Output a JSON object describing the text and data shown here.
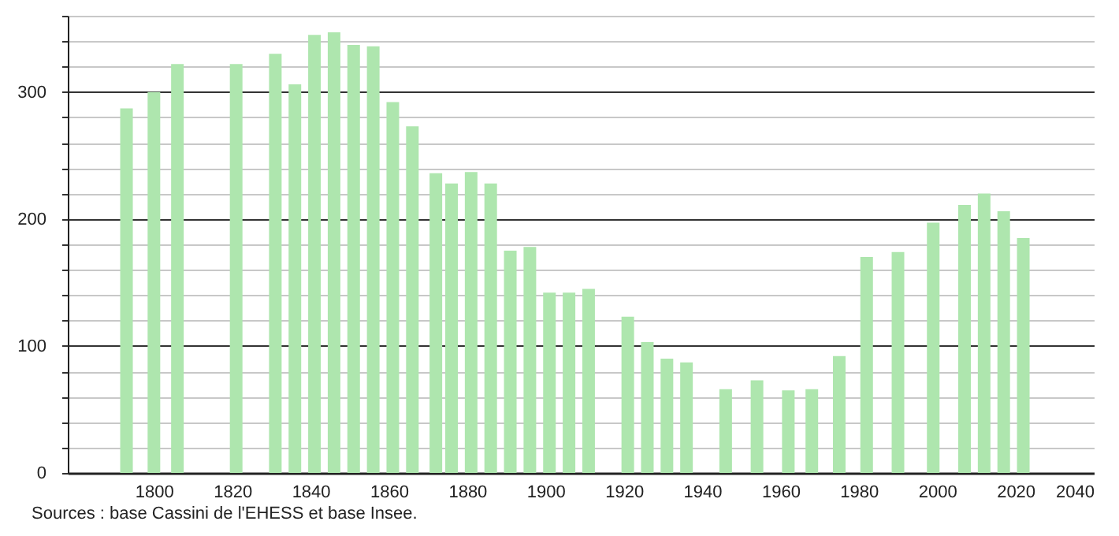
{
  "chart_data": {
    "type": "bar",
    "annotations": [
      "Sources : base Cassini de l'EHESS et base Insee."
    ],
    "x": [
      1793,
      1800,
      1806,
      1821,
      1831,
      1836,
      1841,
      1846,
      1851,
      1856,
      1861,
      1866,
      1872,
      1876,
      1881,
      1886,
      1891,
      1896,
      1901,
      1906,
      1911,
      1921,
      1926,
      1931,
      1936,
      1946,
      1954,
      1962,
      1968,
      1975,
      1982,
      1990,
      1999,
      2007,
      2012,
      2017,
      2022
    ],
    "values": [
      287,
      300,
      322,
      322,
      330,
      306,
      345,
      347,
      337,
      336,
      292,
      273,
      236,
      228,
      237,
      228,
      175,
      178,
      142,
      142,
      145,
      123,
      103,
      90,
      87,
      66,
      73,
      65,
      66,
      92,
      170,
      174,
      197,
      211,
      220,
      206,
      185
    ],
    "color": "#aee6ae",
    "xlim": [
      1778,
      2040
    ],
    "xticks": [
      1800,
      1820,
      1840,
      1860,
      1880,
      1900,
      1920,
      1940,
      1960,
      1980,
      2000,
      2020,
      2040
    ],
    "ylim": [
      0,
      360
    ],
    "yticks": [
      0,
      {
        "value": 20,
        "label": null
      },
      {
        "value": 40,
        "label": null
      },
      {
        "value": 60,
        "label": null
      },
      {
        "value": 80,
        "label": null
      },
      100,
      {
        "value": 120,
        "label": null
      },
      {
        "value": 140,
        "label": null
      },
      {
        "value": 160,
        "label": null
      },
      {
        "value": 180,
        "label": null
      },
      200,
      {
        "value": 220,
        "label": null
      },
      {
        "value": 240,
        "label": null
      },
      {
        "value": 260,
        "label": null
      },
      {
        "value": 280,
        "label": null
      },
      300,
      {
        "value": 320,
        "label": null
      },
      {
        "value": 340,
        "label": null
      },
      {
        "value": 360,
        "label": null
      }
    ],
    "grid": "y"
  }
}
